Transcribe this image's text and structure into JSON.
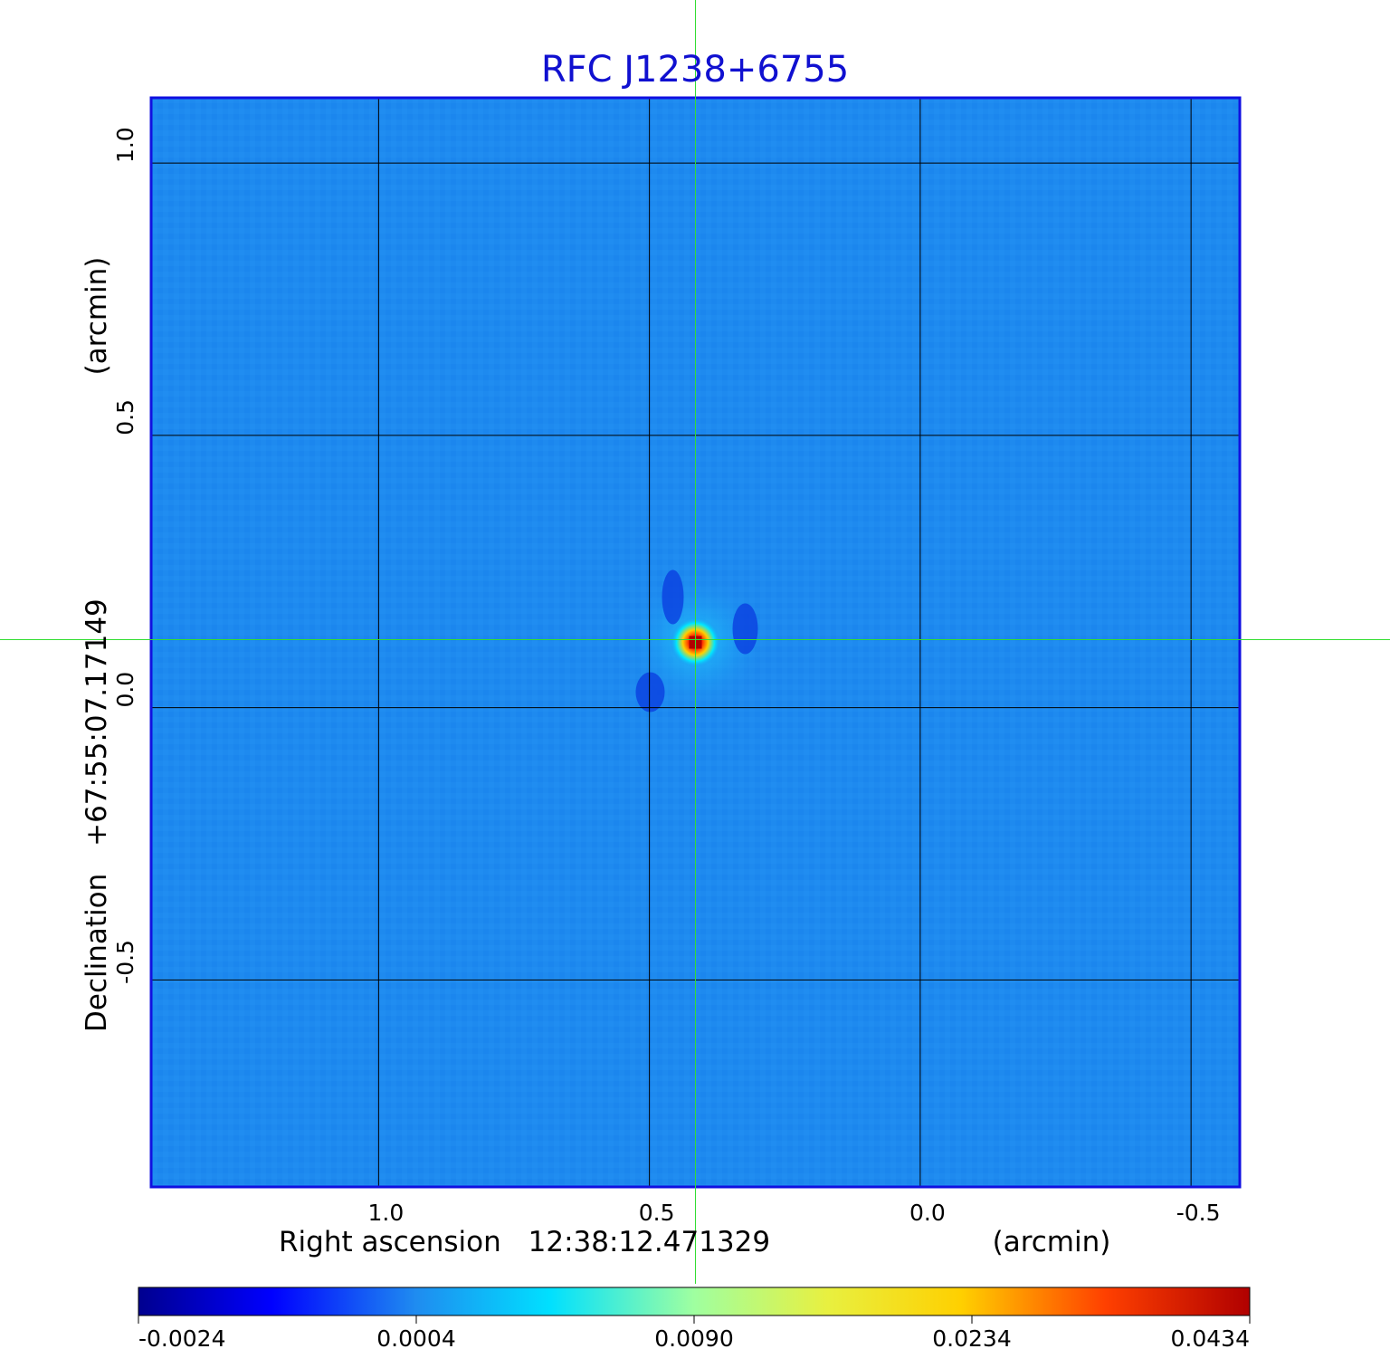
{
  "chart_data": {
    "type": "heatmap",
    "title": "RFC J1238+6755",
    "xlabel": {
      "prefix": "Right ascension",
      "center": "12:38:12.471329",
      "unit": "(arcmin)"
    },
    "ylabel": {
      "prefix": "Declination",
      "center": "+67:55:07.17149",
      "unit": "(arcmin)"
    },
    "x_ticks": [
      {
        "value": 1.0,
        "label": "1.0"
      },
      {
        "value": 0.5,
        "label": "0.5"
      },
      {
        "value": 0.0,
        "label": "0.0"
      },
      {
        "value": -0.5,
        "label": "-0.5"
      }
    ],
    "y_ticks": [
      {
        "value": 1.0,
        "label": "1.0"
      },
      {
        "value": 0.5,
        "label": "0.5"
      },
      {
        "value": 0.0,
        "label": "0.0"
      },
      {
        "value": -0.5,
        "label": "-0.5"
      }
    ],
    "xlim": [
      1.42,
      -0.59
    ],
    "ylim": [
      -0.88,
      1.12
    ],
    "grid": true,
    "crosshair": {
      "x": 0.415,
      "y": 0.125,
      "color": "#33dd33"
    },
    "source_peak": {
      "x": 0.415,
      "y": 0.12,
      "value": 0.0434
    },
    "colorbar": {
      "ticks": [
        "-0.0024",
        "0.0004",
        "0.0090",
        "0.0234",
        "0.0434"
      ],
      "colormap": "jet",
      "min": -0.0024,
      "max": 0.0434
    }
  },
  "colors": {
    "title": "#1010d0",
    "frame": "#1010e0",
    "grid": "#000000",
    "background_emission": "#1f8cf0"
  }
}
